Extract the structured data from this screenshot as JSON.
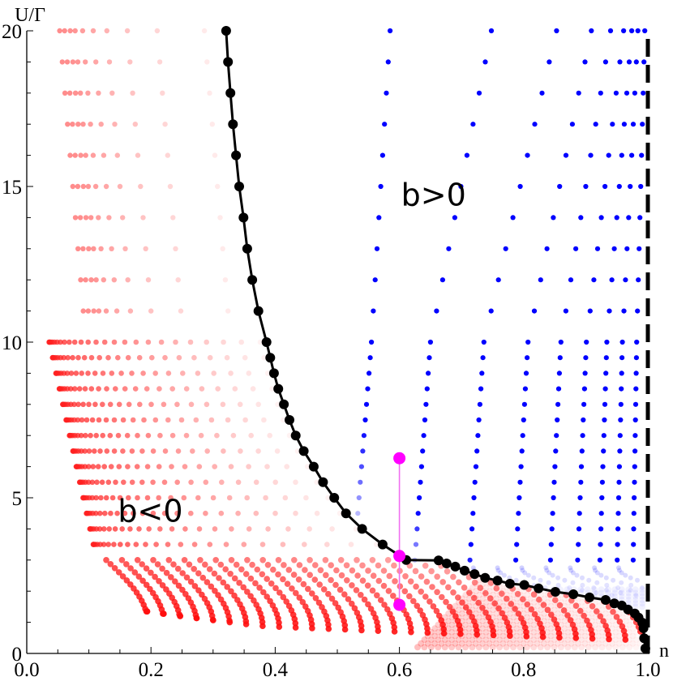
{
  "chart_data": {
    "type": "scatter",
    "title": "",
    "xlabel": "n",
    "ylabel": "U/Γ",
    "xlim": [
      0.0,
      1.0
    ],
    "ylim": [
      0,
      20
    ],
    "grid": false,
    "legend": null,
    "x_ticks": [
      {
        "value": 0.0,
        "label": "0.0"
      },
      {
        "value": 0.2,
        "label": "0.2"
      },
      {
        "value": 0.4,
        "label": "0.4"
      },
      {
        "value": 0.6,
        "label": "0.6"
      },
      {
        "value": 0.8,
        "label": "0.8"
      },
      {
        "value": 1.0,
        "label": "1.0"
      }
    ],
    "y_ticks": [
      {
        "value": 0,
        "label": "0"
      },
      {
        "value": 5,
        "label": "5"
      },
      {
        "value": 10,
        "label": "10"
      },
      {
        "value": 15,
        "label": "15"
      },
      {
        "value": 20,
        "label": "20"
      }
    ],
    "annotations": [
      {
        "text": "b>0",
        "n": 0.655,
        "U": 14.7,
        "name": "region-label-b-positive"
      },
      {
        "text": "b<0",
        "n": 0.199,
        "U": 4.55,
        "name": "region-label-b-negative"
      }
    ],
    "series": [
      {
        "name": "boundary b=0",
        "kind": "line+markers",
        "color": "#000000",
        "points": [
          [
            0.321,
            20.0
          ],
          [
            0.324,
            19.0
          ],
          [
            0.328,
            18.0
          ],
          [
            0.332,
            17.0
          ],
          [
            0.337,
            16.0
          ],
          [
            0.342,
            15.0
          ],
          [
            0.349,
            14.0
          ],
          [
            0.355,
            13.0
          ],
          [
            0.363,
            12.0
          ],
          [
            0.373,
            11.0
          ],
          [
            0.386,
            10.0
          ],
          [
            0.392,
            9.5
          ],
          [
            0.398,
            9.0
          ],
          [
            0.405,
            8.5
          ],
          [
            0.414,
            8.0
          ],
          [
            0.423,
            7.5
          ],
          [
            0.433,
            7.0
          ],
          [
            0.446,
            6.5
          ],
          [
            0.462,
            6.0
          ],
          [
            0.477,
            5.5
          ],
          [
            0.495,
            5.0
          ],
          [
            0.514,
            4.5
          ],
          [
            0.54,
            4.0
          ],
          [
            0.573,
            3.5
          ],
          [
            0.611,
            3.0
          ],
          [
            0.663,
            2.99
          ],
          [
            0.676,
            2.89
          ],
          [
            0.69,
            2.79
          ],
          [
            0.705,
            2.66
          ],
          [
            0.721,
            2.55
          ],
          [
            0.738,
            2.43
          ],
          [
            0.758,
            2.34
          ],
          [
            0.778,
            2.24
          ],
          [
            0.801,
            2.2
          ],
          [
            0.824,
            2.09
          ],
          [
            0.851,
            1.98
          ],
          [
            0.88,
            1.9
          ],
          [
            0.906,
            1.8
          ],
          [
            0.932,
            1.72
          ],
          [
            0.946,
            1.61
          ],
          [
            0.958,
            1.54
          ],
          [
            0.968,
            1.41
          ],
          [
            0.979,
            1.28
          ],
          [
            0.985,
            1.15
          ],
          [
            0.991,
            0.99
          ],
          [
            0.993,
            0.81
          ],
          [
            0.994,
            0.49
          ],
          [
            0.996,
            0.16
          ]
        ]
      },
      {
        "name": "n=1 limit",
        "kind": "dashed-line",
        "color": "#000000",
        "points": [
          [
            1.0,
            0.0
          ],
          [
            1.0,
            20.0
          ]
        ]
      },
      {
        "name": "magenta path n=0.6",
        "kind": "line+markers",
        "color": "#ff00ff",
        "line_color": "#f070f0",
        "points": [
          [
            0.6,
            6.27
          ],
          [
            0.6,
            3.13
          ],
          [
            0.6,
            1.56
          ]
        ]
      },
      {
        "name": "b<0 samples (red)",
        "kind": "scatter",
        "color": "#ff0000",
        "rows_upper": {
          "U_values": [
            11,
            12,
            13,
            14,
            15,
            16,
            17,
            18,
            19,
            20
          ],
          "n_at_U20": [
            0.053,
            0.061,
            0.07,
            0.078,
            0.09,
            0.107,
            0.129,
            0.162,
            0.21,
            0.286
          ],
          "n_at_U11": [
            0.091,
            0.099,
            0.108,
            0.116,
            0.128,
            0.145,
            0.167,
            0.2,
            0.248,
            0.324
          ]
        },
        "rows_middle": {
          "U_values": [
            3.5,
            4.0,
            4.5,
            5.0,
            5.5,
            6.0,
            6.5,
            7.0,
            7.5,
            8.0,
            8.5,
            9.0,
            9.5,
            10.0
          ],
          "n_start_at_U10": 0.036,
          "n_start_at_U3_5": 0.107
        },
        "band_lower": {
          "U_max": 3.0,
          "U_min": 0.1,
          "n_start_at_U3": 0.128,
          "n_end": 0.99
        }
      },
      {
        "name": "b>0 samples (blue)",
        "kind": "scatter",
        "color": "#0000ff",
        "columns_at_U20": [
          0.585,
          0.748,
          0.853,
          0.909,
          0.94,
          0.961,
          0.974,
          0.984,
          0.995
        ],
        "columns_at_U10": [
          0.555,
          0.65,
          0.736,
          0.807,
          0.86,
          0.901,
          0.934,
          0.959,
          0.982
        ]
      }
    ]
  }
}
